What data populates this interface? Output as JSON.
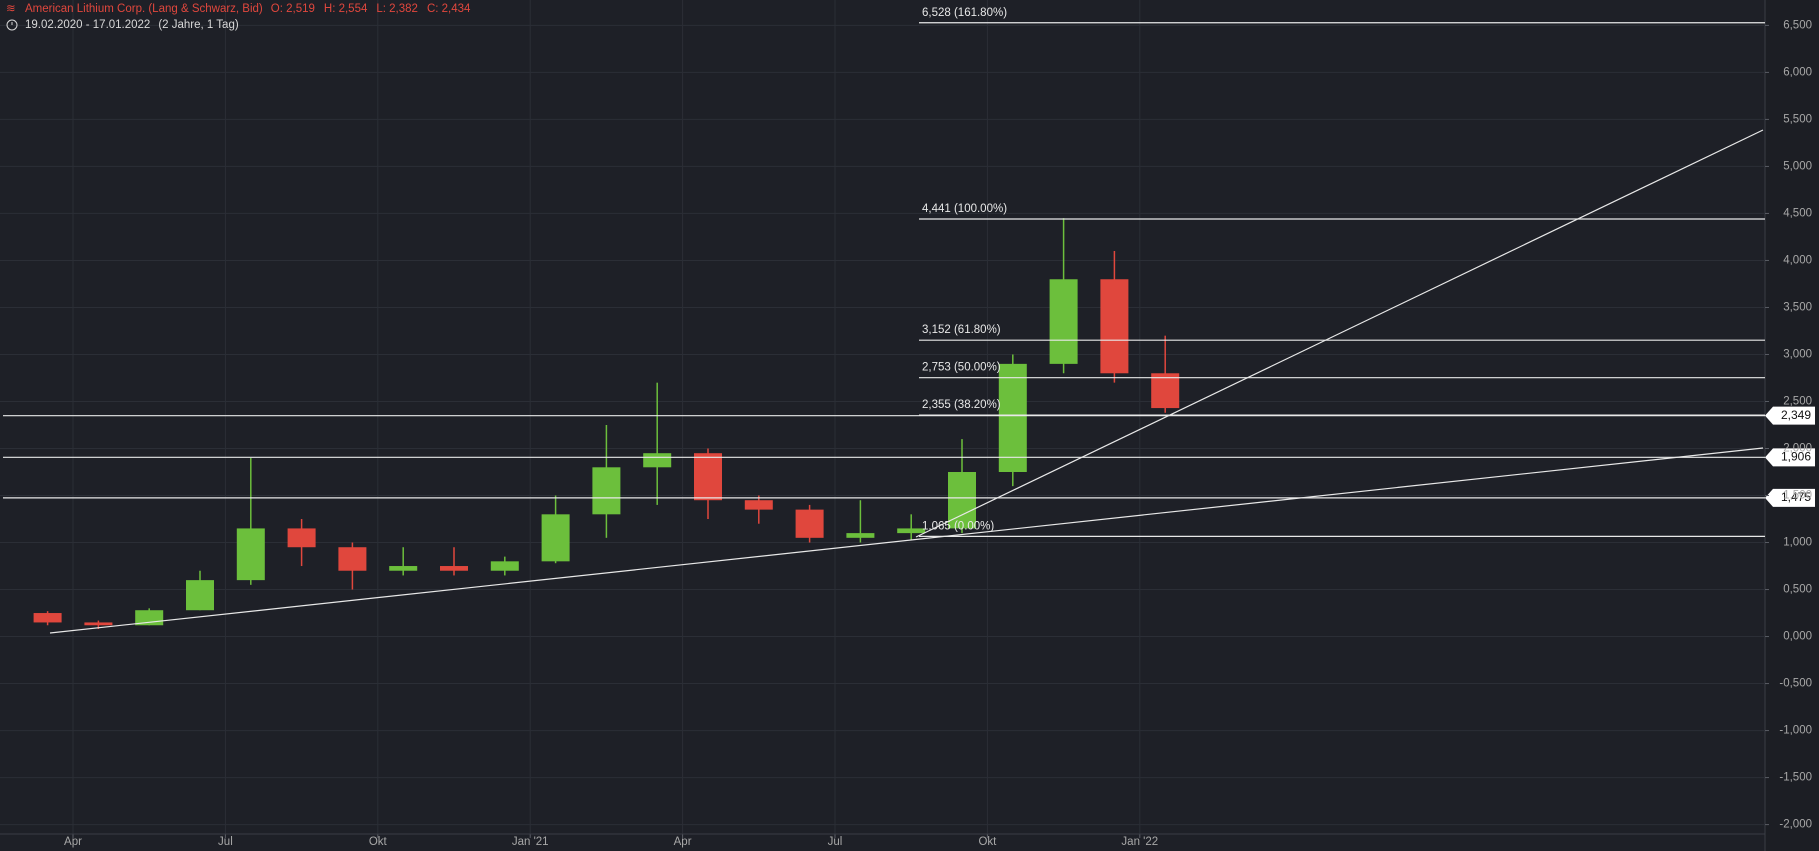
{
  "chart_data": {
    "type": "candlestick",
    "title": "American Lithium Corp. (Lang & Schwarz, Bid)",
    "ohlc_labels": [
      "O: 2,519",
      "H: 2,554",
      "L: 2,382",
      "C: 2,434"
    ],
    "subtitle": "19.02.2020 - 17.01.2022",
    "period": "(2 Jahre, 1 Tag)",
    "categories": [
      null,
      "Apr",
      null,
      null,
      "Jul",
      null,
      null,
      "Okt",
      null,
      null,
      "Jan '21",
      null,
      null,
      "Apr",
      null,
      null,
      "Jul",
      null,
      null,
      "Okt",
      null,
      null,
      "Jan '22"
    ],
    "open": [
      0.25,
      0.15,
      0.12,
      0.28,
      0.6,
      1.15,
      0.95,
      0.7,
      0.75,
      0.7,
      0.8,
      1.3,
      1.8,
      1.95,
      1.45,
      1.35,
      1.05,
      1.1,
      1.15,
      1.75,
      2.9,
      3.8,
      2.8
    ],
    "high": [
      0.27,
      0.17,
      0.3,
      0.7,
      1.9,
      1.25,
      1.0,
      0.95,
      0.95,
      0.85,
      1.5,
      2.25,
      2.7,
      2.0,
      1.5,
      1.4,
      1.45,
      1.3,
      2.1,
      3.0,
      4.45,
      4.1,
      3.2
    ],
    "low": [
      0.12,
      0.08,
      0.12,
      0.28,
      0.55,
      0.75,
      0.5,
      0.65,
      0.65,
      0.65,
      0.78,
      1.05,
      1.4,
      1.25,
      1.2,
      1.0,
      1.0,
      1.03,
      1.1,
      1.6,
      2.8,
      2.7,
      2.38
    ],
    "close": [
      0.15,
      0.12,
      0.28,
      0.6,
      1.15,
      0.95,
      0.7,
      0.75,
      0.7,
      0.8,
      1.3,
      1.8,
      1.95,
      1.45,
      1.35,
      1.05,
      1.1,
      1.15,
      1.75,
      2.9,
      3.8,
      2.8,
      2.43
    ],
    "up_color": "#6cbf3c",
    "down_color": "#e0473d",
    "ylim": [
      -2.1,
      6.77
    ],
    "yticks": [
      {
        "value": -2,
        "label": "-2,000"
      },
      {
        "value": -1.5,
        "label": "-1,500"
      },
      {
        "value": -1,
        "label": "-1,000"
      },
      {
        "value": -0.5,
        "label": "-0,500"
      },
      {
        "value": 0,
        "label": "0,000"
      },
      {
        "value": 0.5,
        "label": "0,500"
      },
      {
        "value": 1,
        "label": "1,000"
      },
      {
        "value": 1.5,
        "label": "1,500"
      },
      {
        "value": 2,
        "label": "2,000"
      },
      {
        "value": 2.5,
        "label": "2,500"
      },
      {
        "value": 3,
        "label": "3,000"
      },
      {
        "value": 3.5,
        "label": "3,500"
      },
      {
        "value": 4,
        "label": "4,000"
      },
      {
        "value": 4.5,
        "label": "4,500"
      },
      {
        "value": 5,
        "label": "5,000"
      },
      {
        "value": 5.5,
        "label": "5,500"
      },
      {
        "value": 6,
        "label": "6,000"
      },
      {
        "value": 6.5,
        "label": "6,500"
      }
    ],
    "grid": true,
    "fib_levels": [
      {
        "value": 6.528,
        "label": "6,528 (161.80%)"
      },
      {
        "value": 4.441,
        "label": "4,441 (100.00%)"
      },
      {
        "value": 3.152,
        "label": "3,152 (61.80%)"
      },
      {
        "value": 2.753,
        "label": "2,753 (50.00%)"
      },
      {
        "value": 2.355,
        "label": "2,355 (38.20%)"
      },
      {
        "value": 1.065,
        "label": "1,065 (0.00%)"
      }
    ],
    "horizontal_levels": [
      {
        "value": 2.349,
        "label": "2,349"
      },
      {
        "value": 1.906,
        "label": "1,906"
      },
      {
        "value": 1.475,
        "label": "1,475"
      }
    ]
  }
}
